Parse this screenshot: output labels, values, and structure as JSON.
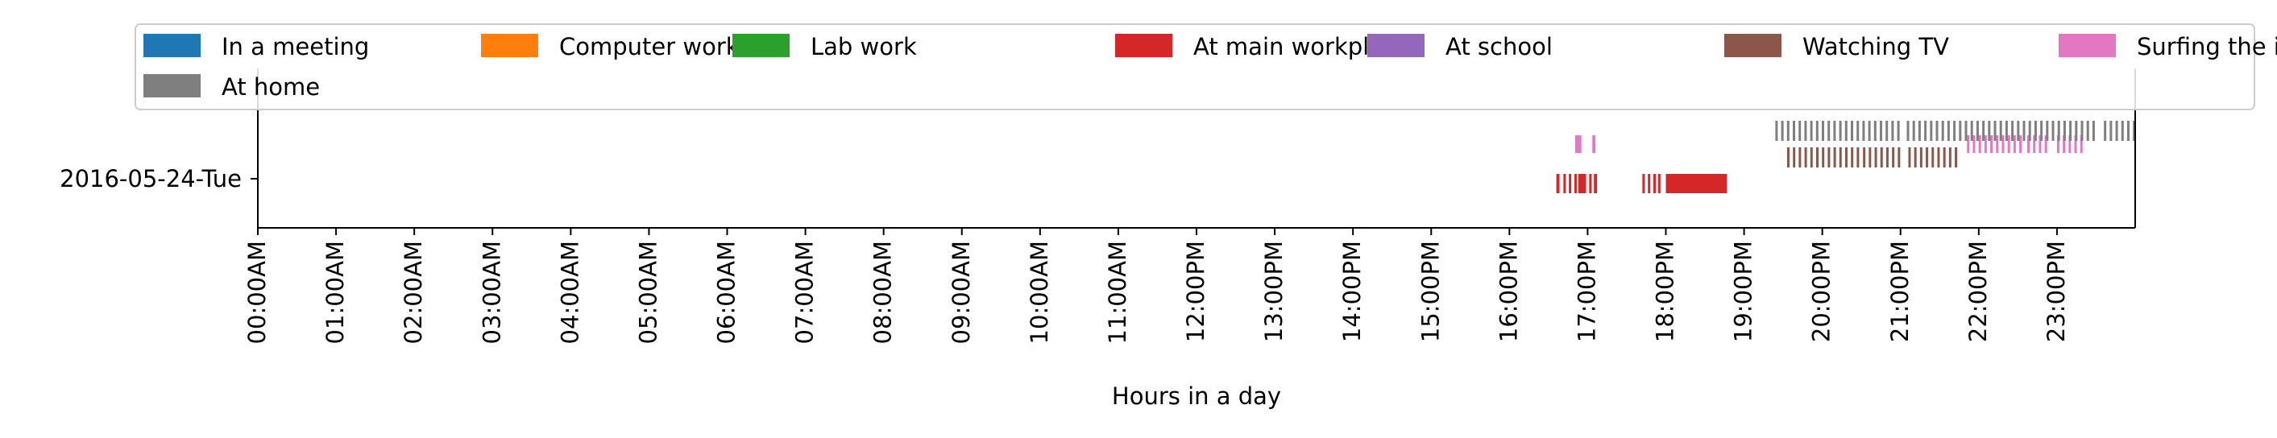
{
  "chart_data": {
    "type": "timeline",
    "xlabel": "Hours in a day",
    "ylabel": "",
    "xlim": [
      0,
      24
    ],
    "x_tick_labels": [
      "00:00AM",
      "01:00AM",
      "02:00AM",
      "03:00AM",
      "04:00AM",
      "05:00AM",
      "06:00AM",
      "07:00AM",
      "08:00AM",
      "09:00AM",
      "10:00AM",
      "11:00AM",
      "12:00PM",
      "13:00PM",
      "14:00PM",
      "15:00PM",
      "16:00PM",
      "17:00PM",
      "18:00PM",
      "19:00PM",
      "20:00PM",
      "21:00PM",
      "22:00PM",
      "23:00PM"
    ],
    "categories": [
      "2016-05-24-Tue"
    ],
    "legend_position": "top",
    "grid": false,
    "series": [
      {
        "name": "In a meeting",
        "color": "#1f77b4",
        "intervals": []
      },
      {
        "name": "Computer work",
        "color": "#ff7f0e",
        "intervals": []
      },
      {
        "name": "Lab work",
        "color": "#2ca02c",
        "intervals": []
      },
      {
        "name": "At main workplace",
        "color": "#d62728",
        "intervals": [
          [
            16.6,
            16.64
          ],
          [
            16.69,
            16.72
          ],
          [
            16.76,
            16.79
          ],
          [
            16.83,
            16.86
          ],
          [
            16.88,
            16.98
          ],
          [
            17.02,
            17.05
          ],
          [
            17.08,
            17.12
          ],
          [
            17.7,
            17.73
          ],
          [
            17.77,
            17.8
          ],
          [
            17.84,
            17.87
          ],
          [
            17.9,
            17.93
          ],
          [
            18.0,
            18.78
          ]
        ]
      },
      {
        "name": "At school",
        "color": "#9467bd",
        "intervals": []
      },
      {
        "name": "Watching TV",
        "color": "#8c564b",
        "intervals": [
          [
            19.55,
            20.5
          ],
          [
            20.52,
            21.02
          ],
          [
            21.1,
            21.72
          ]
        ]
      },
      {
        "name": "Surfing the internet",
        "color": "#e377c2",
        "intervals": [
          [
            16.84,
            16.92
          ],
          [
            17.06,
            17.1
          ],
          [
            21.85,
            22.55
          ],
          [
            22.62,
            22.9
          ],
          [
            23.0,
            23.33
          ]
        ]
      },
      {
        "name": "At home",
        "color": "#7f7f7f",
        "intervals": [
          [
            19.4,
            21.02
          ],
          [
            21.08,
            23.5
          ],
          [
            23.6,
            24.0
          ]
        ]
      }
    ]
  }
}
